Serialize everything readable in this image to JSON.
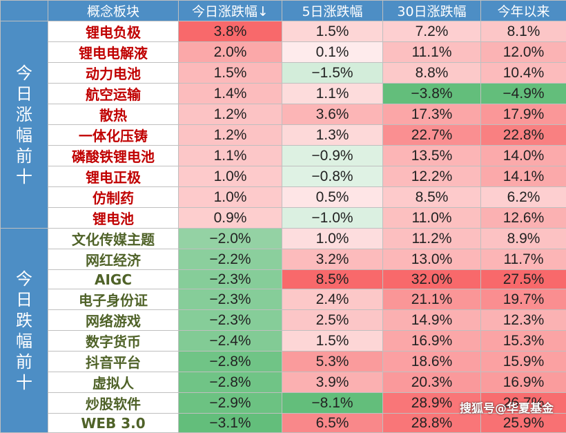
{
  "chart_data": {
    "type": "table",
    "columns": [
      "概念板块",
      "今日涨跌幅↓",
      "5日涨跌幅",
      "30日涨跌幅",
      "今年以来"
    ],
    "groups": [
      {
        "label": "今日涨幅前十",
        "direction": "up",
        "rows": [
          {
            "name": "锂电负极",
            "values": [
              3.8,
              1.5,
              7.2,
              8.1
            ]
          },
          {
            "name": "锂电电解液",
            "values": [
              2.0,
              0.1,
              11.1,
              12.0
            ]
          },
          {
            "name": "动力电池",
            "values": [
              1.5,
              -1.5,
              8.8,
              10.4
            ]
          },
          {
            "name": "航空运输",
            "values": [
              1.4,
              1.1,
              -3.8,
              -4.9
            ]
          },
          {
            "name": "散热",
            "values": [
              1.2,
              3.6,
              17.3,
              17.9
            ]
          },
          {
            "name": "一体化压铸",
            "values": [
              1.2,
              1.3,
              22.7,
              22.8
            ]
          },
          {
            "name": "磷酸铁锂电池",
            "values": [
              1.1,
              -0.9,
              13.5,
              14.0
            ]
          },
          {
            "name": "锂电正极",
            "values": [
              1.0,
              -0.8,
              12.2,
              14.1
            ]
          },
          {
            "name": "仿制药",
            "values": [
              1.0,
              0.5,
              8.5,
              6.2
            ]
          },
          {
            "name": "锂电池",
            "values": [
              0.9,
              -1.0,
              11.0,
              12.6
            ]
          }
        ]
      },
      {
        "label": "今日跌幅前十",
        "direction": "down",
        "rows": [
          {
            "name": "文化传媒主题",
            "values": [
              -2.0,
              1.0,
              11.2,
              8.9
            ]
          },
          {
            "name": "网红经济",
            "values": [
              -2.2,
              3.2,
              13.0,
              11.7
            ]
          },
          {
            "name": "AIGC",
            "values": [
              -2.3,
              8.5,
              32.0,
              27.5
            ]
          },
          {
            "name": "电子身份证",
            "values": [
              -2.3,
              2.4,
              21.1,
              19.7
            ]
          },
          {
            "name": "网络游戏",
            "values": [
              -2.3,
              2.5,
              14.9,
              12.3
            ]
          },
          {
            "name": "数字货币",
            "values": [
              -2.4,
              1.5,
              16.9,
              15.3
            ]
          },
          {
            "name": "抖音平台",
            "values": [
              -2.8,
              5.3,
              18.6,
              15.9
            ]
          },
          {
            "name": "虚拟人",
            "values": [
              -2.8,
              3.9,
              20.3,
              16.9
            ]
          },
          {
            "name": "炒股软件",
            "values": [
              -2.9,
              -8.1,
              28.9,
              26.7
            ]
          },
          {
            "name": "WEB 3.0",
            "values": [
              -3.1,
              6.5,
              28.8,
              25.9
            ]
          }
        ]
      }
    ],
    "colors": {
      "header_bg": "#4d8ec5",
      "up_name": "#c00000",
      "down_name": "#4f6228",
      "positive": "#f8696b",
      "negative": "#63be7b",
      "neutral": "#ffffff"
    }
  },
  "watermark": "搜狐号@华夏基金"
}
